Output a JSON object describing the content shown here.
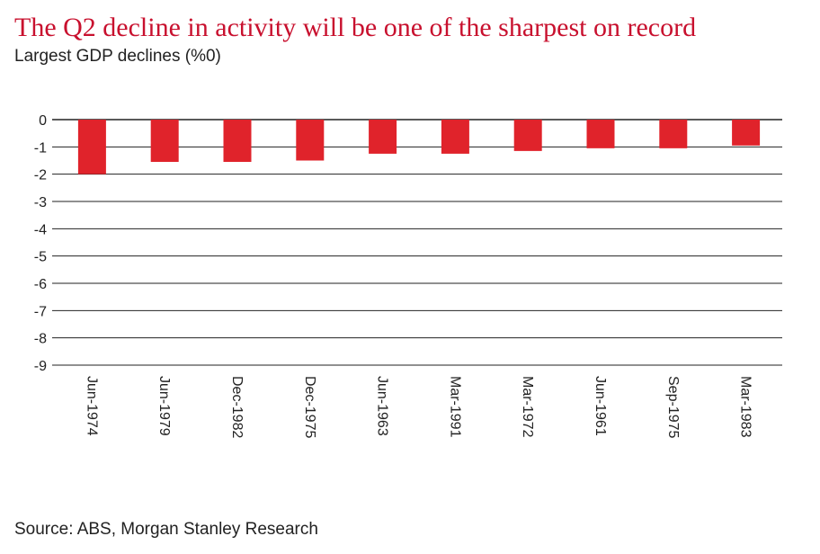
{
  "header": {
    "title": "The Q2 decline in activity will be one of the sharpest on record",
    "subtitle": "Largest GDP declines (%0)"
  },
  "footer": {
    "source": "Source: ABS, Morgan Stanley Research"
  },
  "colors": {
    "bar": "#e0232b",
    "title": "#c8102e",
    "grid": "#222222"
  },
  "chart_data": {
    "type": "bar",
    "title": "The Q2 decline in activity will be one of the sharpest on record",
    "subtitle": "Largest GDP declines (%0)",
    "xlabel": "",
    "ylabel": "",
    "categories": [
      "Jun-1974",
      "Jun-1979",
      "Dec-1982",
      "Dec-1975",
      "Jun-1963",
      "Mar-1991",
      "Mar-1972",
      "Jun-1961",
      "Sep-1975",
      "Mar-1983"
    ],
    "values": [
      -2.0,
      -1.55,
      -1.55,
      -1.5,
      -1.25,
      -1.25,
      -1.15,
      -1.05,
      -1.05,
      -0.95
    ],
    "ylim": [
      -9,
      0
    ],
    "yticks": [
      0,
      -1,
      -2,
      -3,
      -4,
      -5,
      -6,
      -7,
      -8,
      -9
    ],
    "grid": true,
    "legend": "none"
  }
}
